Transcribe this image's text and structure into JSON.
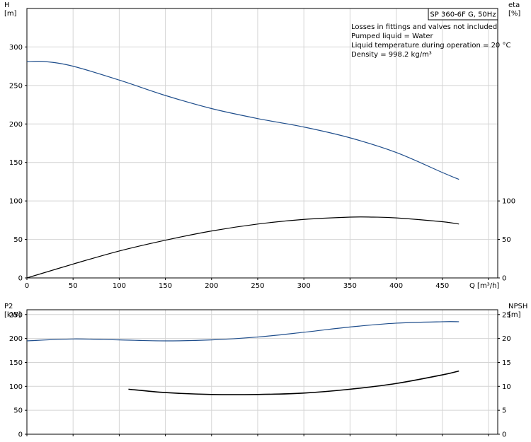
{
  "chart_data": [
    {
      "type": "line",
      "title": "SP 360-6F G, 50Hz",
      "notes": [
        "Losses in fittings and valves not included",
        "Pumped liquid = Water",
        "Liquid temperature during operation = 20 °C",
        "Density = 998.2 kg/m³"
      ],
      "xlabel": "Q [m³/h]",
      "ylabel_left": [
        "H",
        "[m]"
      ],
      "ylabel_right": [
        "eta",
        "[%]"
      ],
      "xlim": [
        0,
        510
      ],
      "ylim_left": [
        0,
        350
      ],
      "ylim_right": [
        0,
        350
      ],
      "x_ticks": [
        0,
        50,
        100,
        150,
        200,
        250,
        300,
        350,
        400,
        450
      ],
      "y_ticks_left": [
        0,
        50,
        100,
        150,
        200,
        250,
        300
      ],
      "y_ticks_right": [
        0,
        50,
        100
      ],
      "grid": true,
      "series": [
        {
          "axis": "left",
          "color": "#1f4e8c",
          "x": [
            0,
            20,
            50,
            100,
            150,
            200,
            250,
            300,
            350,
            400,
            450,
            468
          ],
          "y": [
            281,
            281,
            275,
            257,
            237,
            220,
            207,
            196,
            182,
            163,
            137,
            128
          ]
        },
        {
          "axis": "right",
          "color": "#000000",
          "x": [
            0,
            50,
            100,
            150,
            200,
            250,
            300,
            350,
            375,
            400,
            450,
            468
          ],
          "y": [
            0,
            18,
            35,
            49,
            61,
            70,
            76,
            79,
            79,
            78,
            73,
            70
          ]
        }
      ]
    },
    {
      "type": "line",
      "xlim": [
        0,
        510
      ],
      "ylabel_left": [
        "P2",
        "[kW]"
      ],
      "ylabel_right": [
        "NPSH",
        "[m]"
      ],
      "ylim_left": [
        0,
        260
      ],
      "ylim_right": [
        0,
        26
      ],
      "x_ticks": [
        0,
        50,
        100,
        150,
        200,
        250,
        300,
        350,
        400,
        450
      ],
      "y_ticks_left": [
        0,
        50,
        100,
        150,
        200,
        250
      ],
      "y_ticks_right": [
        0,
        5,
        10,
        15,
        20,
        25
      ],
      "grid": true,
      "series": [
        {
          "axis": "left",
          "color": "#1f4e8c",
          "x": [
            0,
            50,
            100,
            150,
            200,
            250,
            300,
            350,
            400,
            450,
            468
          ],
          "y": [
            195,
            199,
            197,
            195,
            197,
            203,
            213,
            224,
            232,
            235,
            235
          ]
        },
        {
          "axis": "right",
          "color": "#000000",
          "x": [
            110,
            150,
            200,
            250,
            300,
            350,
            400,
            450,
            468
          ],
          "y": [
            9.4,
            8.7,
            8.3,
            8.3,
            8.6,
            9.4,
            10.6,
            12.4,
            13.2
          ]
        }
      ]
    }
  ]
}
